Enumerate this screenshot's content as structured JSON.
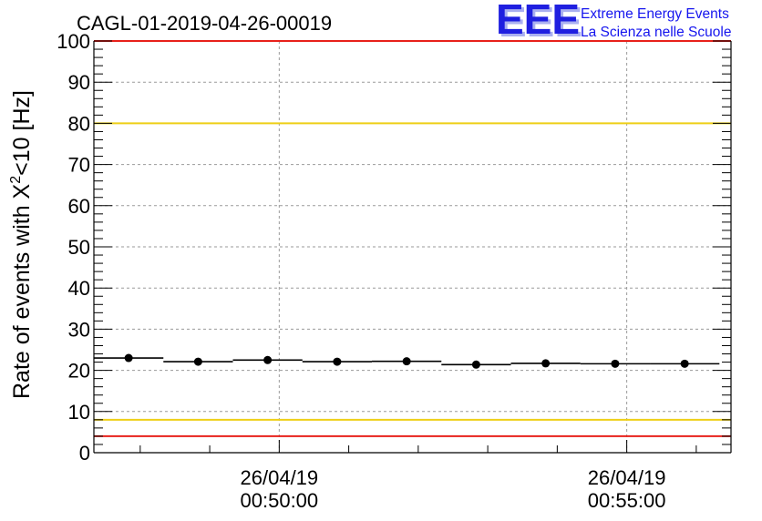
{
  "chart_data": {
    "type": "scatter",
    "title": "CAGL-01-2019-04-26-00019",
    "ylabel_main": "Rate of events with X",
    "ylabel_sup": "2",
    "ylabel_tail": "<10 [Hz]",
    "xlabel": "",
    "ylim": [
      0,
      100
    ],
    "yticks": [
      0,
      10,
      20,
      30,
      40,
      50,
      60,
      70,
      80,
      90,
      100
    ],
    "xlim": [
      "00:47:20",
      "00:56:30"
    ],
    "xticks": [
      {
        "date": "26/04/19",
        "time": "00:50:00"
      },
      {
        "date": "26/04/19",
        "time": "00:55:00"
      }
    ],
    "grid": true,
    "points": [
      {
        "x": "00:47:50",
        "y": 23.0
      },
      {
        "x": "00:48:50",
        "y": 22.1
      },
      {
        "x": "00:49:50",
        "y": 22.5
      },
      {
        "x": "00:50:50",
        "y": 22.1
      },
      {
        "x": "00:51:50",
        "y": 22.2
      },
      {
        "x": "00:52:50",
        "y": 21.4
      },
      {
        "x": "00:53:50",
        "y": 21.7
      },
      {
        "x": "00:54:50",
        "y": 21.6
      },
      {
        "x": "00:55:50",
        "y": 21.6
      }
    ],
    "bin_width_seconds": 60,
    "reference_lines": [
      {
        "y": 100,
        "color": "#e8211b"
      },
      {
        "y": 80,
        "color": "#eecf16"
      },
      {
        "y": 8,
        "color": "#eecf16"
      },
      {
        "y": 4,
        "color": "#e8211b"
      }
    ]
  },
  "logo": {
    "big": "EEE",
    "line1": "Extreme Energy Events",
    "line2": "La Scienza nelle Scuole"
  },
  "colors": {
    "logo_blue": "#1f1fe0",
    "logo_shadow": "#aab0f0",
    "grid": "#9a9a9a",
    "marker": "#000000"
  }
}
